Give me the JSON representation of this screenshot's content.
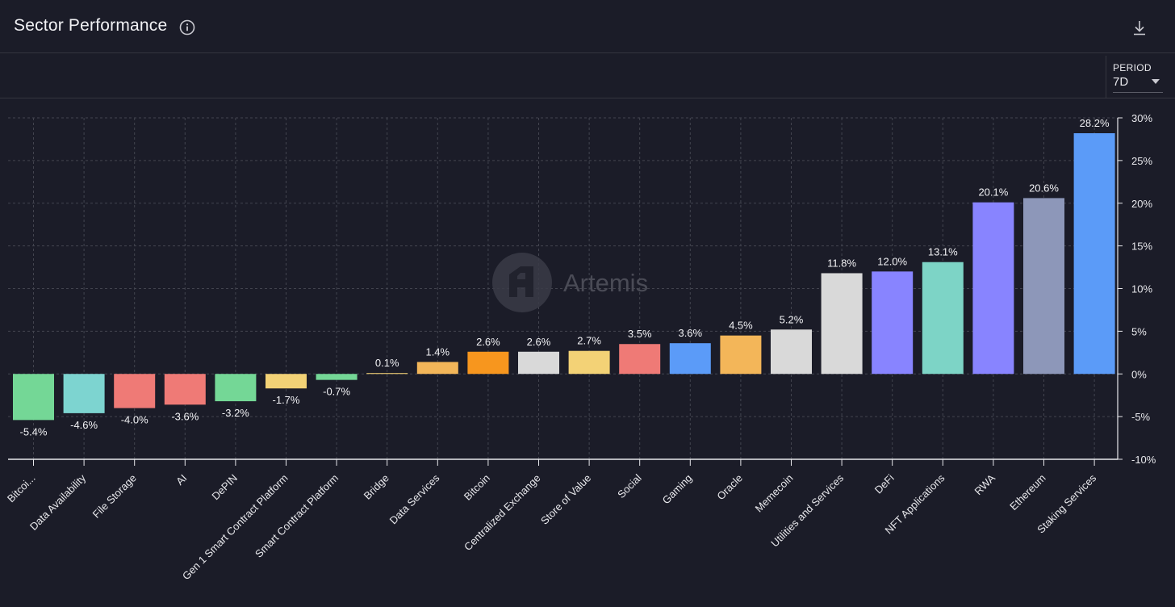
{
  "header": {
    "title": "Sector Performance",
    "info_icon": "info-icon",
    "download_icon": "download-icon"
  },
  "controls": {
    "period_label": "PERIOD",
    "period_value": "7D"
  },
  "watermark": {
    "text": "Artemis",
    "logo_icon": "artemis-logo-icon"
  },
  "chart_data": {
    "type": "bar",
    "title": "Sector Performance",
    "categories": [
      "Bitcoi...",
      "Data Availability",
      "File Storage",
      "AI",
      "DePIN",
      "Gen 1 Smart Contract Platform",
      "Smart Contract Platform",
      "Bridge",
      "Data Services",
      "Bitcoin",
      "Centralized Exchange",
      "Store of Value",
      "Social",
      "Gaming",
      "Oracle",
      "Memecoin",
      "Utilities and Services",
      "DeFi",
      "NFT Applications",
      "RWA",
      "Ethereum",
      "Staking Services"
    ],
    "values": [
      -5.4,
      -4.6,
      -4.0,
      -3.6,
      -3.2,
      -1.7,
      -0.7,
      0.1,
      1.4,
      2.6,
      2.6,
      2.7,
      3.5,
      3.6,
      4.5,
      5.2,
      11.8,
      12.0,
      13.1,
      20.1,
      20.6,
      28.2
    ],
    "data_labels": [
      "-5.4%",
      "-4.6%",
      "-4.0%",
      "-3.6%",
      "-3.2%",
      "-1.7%",
      "-0.7%",
      "0.1%",
      "1.4%",
      "2.6%",
      "2.6%",
      "2.7%",
      "3.5%",
      "3.6%",
      "4.5%",
      "5.2%",
      "11.8%",
      "12.0%",
      "13.1%",
      "20.1%",
      "20.6%",
      "28.2%"
    ],
    "colors": [
      "#74d796",
      "#7dd4d0",
      "#ef7a76",
      "#ef7a76",
      "#74d796",
      "#f3d276",
      "#74d796",
      "#f3d276",
      "#f3b659",
      "#f7961e",
      "#d9d9d9",
      "#f3d276",
      "#ef7a76",
      "#5b9bf8",
      "#f3b659",
      "#d9d9d9",
      "#d9d9d9",
      "#8884ff",
      "#7dd4c6",
      "#8884ff",
      "#8d97b9",
      "#5b9bf8"
    ],
    "ylim": [
      -10,
      30
    ],
    "yticks": [
      30,
      25,
      20,
      15,
      10,
      5,
      0,
      -5,
      -10
    ],
    "ytick_labels": [
      "30%",
      "25%",
      "20%",
      "15%",
      "10%",
      "5%",
      "0%",
      "-5%",
      "-10%"
    ],
    "y_axis_position": "right",
    "grid": true,
    "xlabel": "",
    "ylabel": ""
  }
}
